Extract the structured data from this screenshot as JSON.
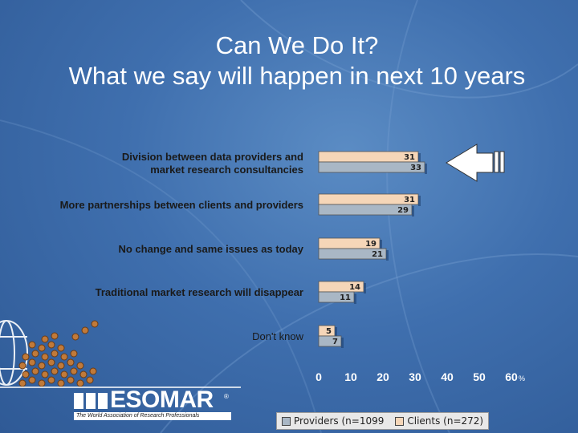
{
  "title": {
    "line1": "Can We Do It?",
    "line2": "What we say will happen in next 10 years"
  },
  "chart_data": {
    "type": "bar",
    "orientation": "horizontal",
    "categories": [
      [
        "Division between data providers and",
        "market research consultancies"
      ],
      [
        "More partnerships between clients and providers"
      ],
      [
        "No change and same issues as today"
      ],
      [
        "Traditional market research will disappear"
      ],
      [
        "Don't know"
      ]
    ],
    "series": [
      {
        "name": "Clients (n=272)",
        "values": [
          31,
          31,
          19,
          14,
          5
        ],
        "color": "#f5d6b8"
      },
      {
        "name": "Providers (n=1099",
        "values": [
          33,
          29,
          21,
          11,
          7
        ],
        "color": "#a9b7c5"
      }
    ],
    "xlim": [
      0,
      60
    ],
    "xticks": [
      0,
      10,
      20,
      30,
      40,
      50,
      60
    ],
    "x_unit": "%",
    "legend_position": "bottom",
    "legend_order": [
      "Providers (n=1099",
      "Clients (n=272)"
    ],
    "annotation": "arrow pointing to first category"
  },
  "logo": {
    "name": "ESOMAR",
    "registered": "®",
    "tagline": "The World Association of Research Professionals"
  },
  "colors": {
    "background": "#3f6fae",
    "title_text": "#ffffff",
    "arrow_fill": "#ffffff"
  }
}
